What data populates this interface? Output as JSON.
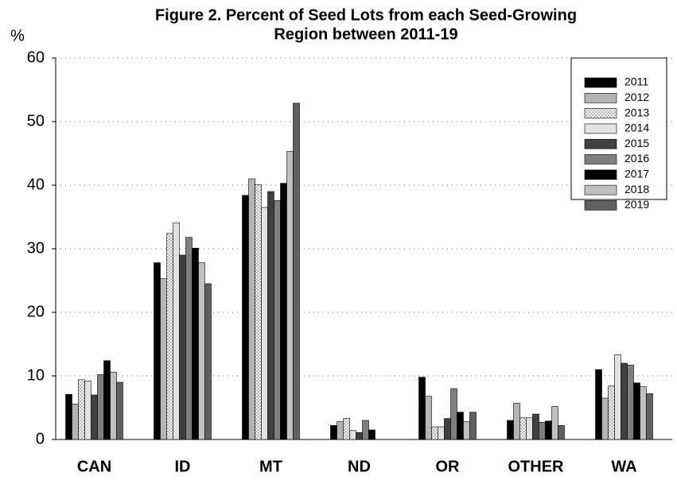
{
  "chart_data": {
    "type": "bar",
    "title": [
      "Figure 2. Percent of Seed Lots from each Seed-Growing",
      "Region between 2011-19"
    ],
    "y_label": "%",
    "categories": [
      "CAN",
      "ID",
      "MT",
      "ND",
      "OR",
      "OTHER",
      "WA"
    ],
    "series": [
      {
        "name": "2011",
        "color": "#000000",
        "values": [
          7.1,
          27.8,
          38.4,
          2.2,
          9.8,
          3.0,
          11.0
        ]
      },
      {
        "name": "2012",
        "color": "#b4b4b4",
        "values": [
          5.6,
          25.3,
          41.0,
          2.8,
          6.8,
          5.7,
          6.5
        ]
      },
      {
        "name": "2013",
        "color": "#ffffff",
        "pattern": "dots",
        "values": [
          9.4,
          32.4,
          40.1,
          3.3,
          2.0,
          3.4,
          8.4
        ]
      },
      {
        "name": "2014",
        "color": "#e2e2e2",
        "values": [
          9.2,
          34.1,
          36.5,
          1.4,
          2.0,
          3.4,
          13.3
        ]
      },
      {
        "name": "2015",
        "color": "#404040",
        "values": [
          7.0,
          29.0,
          39.0,
          1.1,
          3.3,
          4.0,
          12.0
        ]
      },
      {
        "name": "2016",
        "color": "#7f7f7f",
        "values": [
          10.2,
          31.8,
          37.6,
          3.0,
          8.0,
          2.7,
          11.7
        ]
      },
      {
        "name": "2017",
        "color": "#000000",
        "values": [
          12.4,
          30.1,
          40.3,
          1.5,
          4.3,
          2.9,
          8.9
        ]
      },
      {
        "name": "2018",
        "color": "#c0c0c0",
        "values": [
          10.6,
          27.8,
          45.3,
          0,
          2.8,
          5.2,
          8.3
        ]
      },
      {
        "name": "2019",
        "color": "#606060",
        "values": [
          9.0,
          24.5,
          52.9,
          0,
          4.3,
          2.2,
          7.2
        ]
      }
    ],
    "ylim": [
      0,
      60
    ],
    "yticks": [
      0,
      10,
      20,
      30,
      40,
      50,
      60
    ],
    "grid": true,
    "legend": "top-right"
  }
}
